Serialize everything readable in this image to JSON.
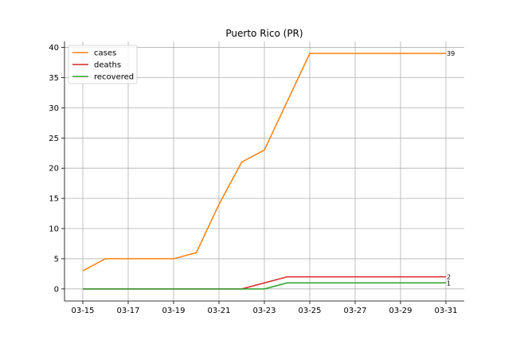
{
  "chart_data": {
    "type": "line",
    "title": "Puerto Rico (PR)",
    "xlabel": "",
    "ylabel": "",
    "x": [
      "03-15",
      "03-16",
      "03-17",
      "03-18",
      "03-19",
      "03-20",
      "03-21",
      "03-22",
      "03-23",
      "03-24",
      "03-25",
      "03-26",
      "03-27",
      "03-28",
      "03-29",
      "03-30",
      "03-31"
    ],
    "xticks": [
      "03-15",
      "03-17",
      "03-19",
      "03-21",
      "03-23",
      "03-25",
      "03-27",
      "03-29",
      "03-31"
    ],
    "ylim": [
      -2,
      41
    ],
    "yticks": [
      0,
      5,
      10,
      15,
      20,
      25,
      30,
      35,
      40
    ],
    "grid": true,
    "legend_position": "top-left",
    "series": [
      {
        "name": "cases",
        "color": "#ff7f0e",
        "end_label": "39",
        "values": [
          3,
          5,
          5,
          5,
          5,
          6,
          14,
          21,
          23,
          31,
          39,
          39,
          39,
          39,
          39,
          39,
          39
        ]
      },
      {
        "name": "deaths",
        "color": "#d62728",
        "end_label": "2",
        "values": [
          0,
          0,
          0,
          0,
          0,
          0,
          0,
          0,
          1,
          2,
          2,
          2,
          2,
          2,
          2,
          2,
          2
        ]
      },
      {
        "name": "recovered",
        "color": "#2ca02c",
        "end_label": "1",
        "values": [
          0,
          0,
          0,
          0,
          0,
          0,
          0,
          0,
          0,
          1,
          1,
          1,
          1,
          1,
          1,
          1,
          1
        ]
      }
    ]
  }
}
